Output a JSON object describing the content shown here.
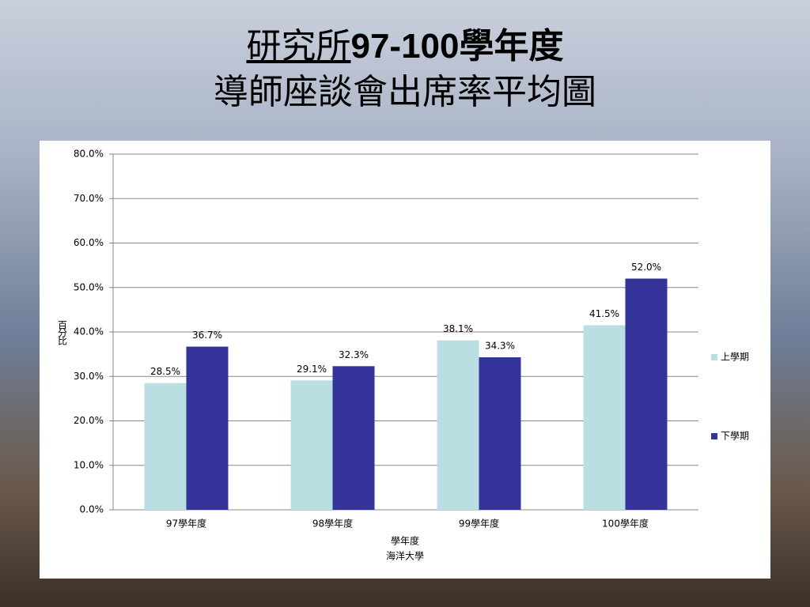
{
  "title_parts": [
    "研究所",
    "97-100學年度"
  ],
  "subtitle": "導師座談會出席率平均圖",
  "chart_data": {
    "type": "bar",
    "y_label": "百分比",
    "x_label": "學年度",
    "note": "海洋大學",
    "categories": [
      "97學年度",
      "98學年度",
      "99學年度",
      "100學年度"
    ],
    "series": [
      {
        "name": "上學期",
        "color": "#b9dfe3",
        "values": [
          28.5,
          29.1,
          38.1,
          41.5
        ],
        "value_labels": [
          "28.5%",
          "29.1%",
          "38.1%",
          "41.5%"
        ]
      },
      {
        "name": "下學期",
        "color": "#333399",
        "values": [
          36.7,
          32.3,
          34.3,
          52.0
        ],
        "value_labels": [
          "36.7%",
          "32.3%",
          "34.3%",
          "52.0%"
        ]
      }
    ],
    "ylim": [
      0,
      80
    ],
    "yticks": [
      {
        "value": 0,
        "label": "0.0%"
      },
      {
        "value": 10,
        "label": "10.0%"
      },
      {
        "value": 20,
        "label": "20.0%"
      },
      {
        "value": 30,
        "label": "30.0%"
      },
      {
        "value": 40,
        "label": "40.0%"
      },
      {
        "value": 50,
        "label": "50.0%"
      },
      {
        "value": 60,
        "label": "60.0%"
      },
      {
        "value": 70,
        "label": "70.0%"
      },
      {
        "value": 80,
        "label": "80.0%"
      }
    ],
    "grid": true,
    "legend": "right"
  }
}
